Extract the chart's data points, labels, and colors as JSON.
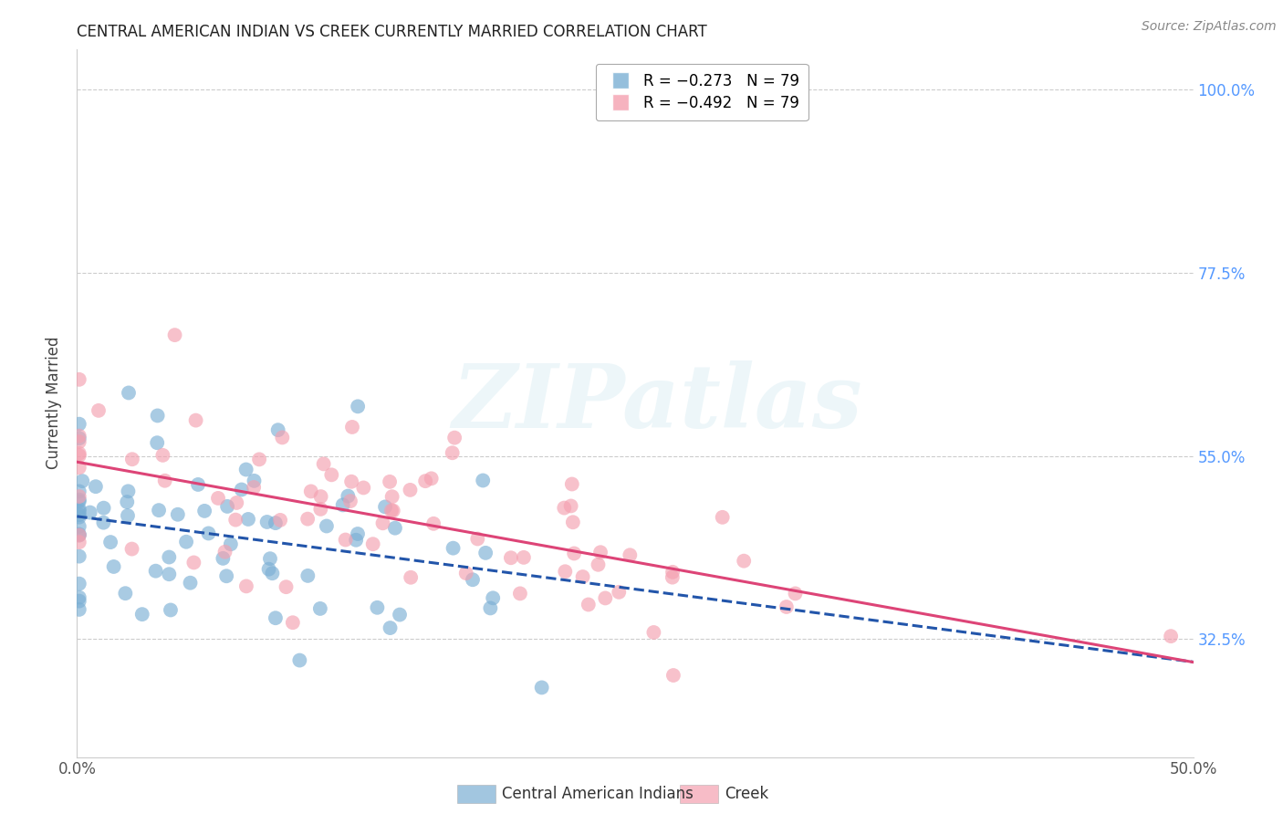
{
  "title": "CENTRAL AMERICAN INDIAN VS CREEK CURRENTLY MARRIED CORRELATION CHART",
  "source": "Source: ZipAtlas.com",
  "ylabel": "Currently Married",
  "ytick_labels": [
    "100.0%",
    "77.5%",
    "55.0%",
    "32.5%"
  ],
  "ytick_values": [
    1.0,
    0.775,
    0.55,
    0.325
  ],
  "legend_blue": "R = −0.273   N = 79",
  "legend_pink": "R = −0.492   N = 79",
  "legend_label_blue": "Central American Indians",
  "legend_label_pink": "Creek",
  "blue_color": "#7bafd4",
  "pink_color": "#f4a0b0",
  "blue_line_color": "#2255aa",
  "pink_line_color": "#dd4477",
  "watermark": "ZIPatlas",
  "xlim": [
    0.0,
    0.5
  ],
  "ylim": [
    0.18,
    1.05
  ],
  "R_blue": -0.273,
  "R_pink": -0.492,
  "N": 79,
  "seed_blue": 42,
  "seed_pink": 137,
  "background_color": "#ffffff",
  "grid_color": "#cccccc",
  "right_axis_color": "#5599ff"
}
